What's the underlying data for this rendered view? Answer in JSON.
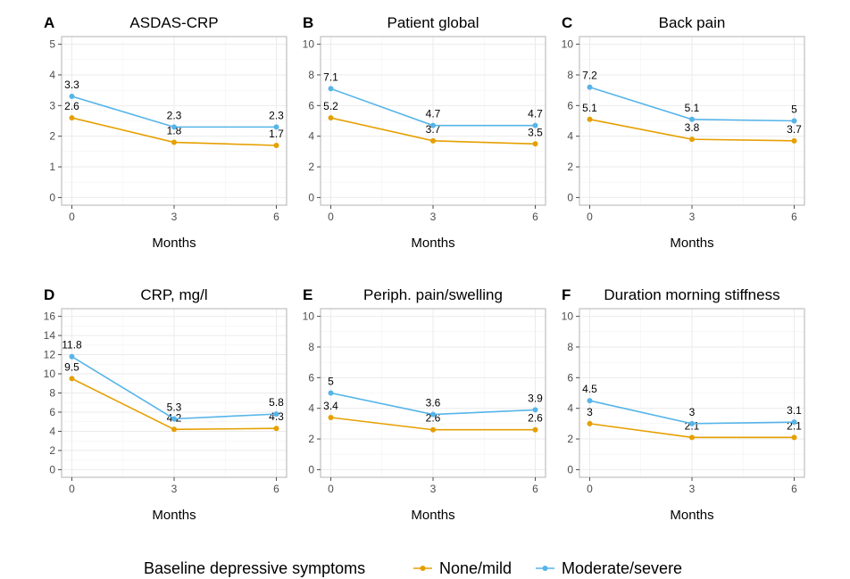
{
  "legend": {
    "title": "Baseline depressive symptoms",
    "items": [
      {
        "label": "None/mild",
        "color": "#E69F00"
      },
      {
        "label": "Moderate/severe",
        "color": "#56B4E9"
      }
    ]
  },
  "chart_data": [
    {
      "type": "line",
      "letter": "A",
      "title": "ASDAS-CRP",
      "xlabel": "Months",
      "ylabel": "",
      "x": [
        0,
        3,
        6
      ],
      "ylim": [
        0,
        5
      ],
      "yticks": [
        0,
        1,
        2,
        3,
        4,
        5
      ],
      "grid": true,
      "series": [
        {
          "name": "None/mild",
          "values": [
            2.6,
            1.8,
            1.7
          ],
          "labels": [
            "2.6",
            "1.8",
            "1.7"
          ]
        },
        {
          "name": "Moderate/severe",
          "values": [
            3.3,
            2.3,
            2.3
          ],
          "labels": [
            "3.3",
            "2.3",
            "2.3"
          ]
        }
      ]
    },
    {
      "type": "line",
      "letter": "B",
      "title": "Patient global",
      "xlabel": "Months",
      "ylabel": "",
      "x": [
        0,
        3,
        6
      ],
      "ylim": [
        0,
        10
      ],
      "yticks": [
        0,
        2,
        4,
        6,
        8,
        10
      ],
      "grid": true,
      "series": [
        {
          "name": "None/mild",
          "values": [
            5.2,
            3.7,
            3.5
          ],
          "labels": [
            "5.2",
            "3.7",
            "3.5"
          ]
        },
        {
          "name": "Moderate/severe",
          "values": [
            7.1,
            4.7,
            4.7
          ],
          "labels": [
            "7.1",
            "4.7",
            "4.7"
          ]
        }
      ]
    },
    {
      "type": "line",
      "letter": "C",
      "title": "Back pain",
      "xlabel": "Months",
      "ylabel": "",
      "x": [
        0,
        3,
        6
      ],
      "ylim": [
        0,
        10
      ],
      "yticks": [
        0,
        2,
        4,
        6,
        8,
        10
      ],
      "grid": true,
      "series": [
        {
          "name": "None/mild",
          "values": [
            5.1,
            3.8,
            3.7
          ],
          "labels": [
            "5.1",
            "3.8",
            "3.7"
          ]
        },
        {
          "name": "Moderate/severe",
          "values": [
            7.2,
            5.1,
            5.0
          ],
          "labels": [
            "7.2",
            "5.1",
            "5"
          ]
        }
      ]
    },
    {
      "type": "line",
      "letter": "D",
      "title": "CRP, mg/l",
      "xlabel": "Months",
      "ylabel": "",
      "x": [
        0,
        3,
        6
      ],
      "ylim": [
        0,
        16
      ],
      "yticks": [
        0,
        2,
        4,
        6,
        8,
        10,
        12,
        14,
        16
      ],
      "grid": true,
      "series": [
        {
          "name": "None/mild",
          "values": [
            9.5,
            4.2,
            4.3
          ],
          "labels": [
            "9.5",
            "4.2",
            "4.3"
          ]
        },
        {
          "name": "Moderate/severe",
          "values": [
            11.8,
            5.3,
            5.8
          ],
          "labels": [
            "11.8",
            "5.3",
            "5.8"
          ]
        }
      ]
    },
    {
      "type": "line",
      "letter": "E",
      "title": "Periph. pain/swelling",
      "xlabel": "Months",
      "ylabel": "",
      "x": [
        0,
        3,
        6
      ],
      "ylim": [
        0,
        10
      ],
      "yticks": [
        0,
        2,
        4,
        6,
        8,
        10
      ],
      "grid": true,
      "series": [
        {
          "name": "None/mild",
          "values": [
            3.4,
            2.6,
            2.6
          ],
          "labels": [
            "3.4",
            "2.6",
            "2.6"
          ]
        },
        {
          "name": "Moderate/severe",
          "values": [
            5.0,
            3.6,
            3.9
          ],
          "labels": [
            "5",
            "3.6",
            "3.9"
          ]
        }
      ]
    },
    {
      "type": "line",
      "letter": "F",
      "title": "Duration morning stiffness",
      "xlabel": "Months",
      "ylabel": "",
      "x": [
        0,
        3,
        6
      ],
      "ylim": [
        0,
        10
      ],
      "yticks": [
        0,
        2,
        4,
        6,
        8,
        10
      ],
      "grid": true,
      "series": [
        {
          "name": "None/mild",
          "values": [
            3.0,
            2.1,
            2.1
          ],
          "labels": [
            "3",
            "2.1",
            "2.1"
          ]
        },
        {
          "name": "Moderate/severe",
          "values": [
            4.5,
            3.0,
            3.1
          ],
          "labels": [
            "4.5",
            "3",
            "3.1"
          ]
        }
      ]
    }
  ]
}
